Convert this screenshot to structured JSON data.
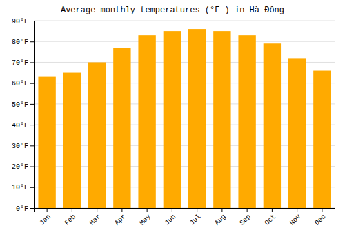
{
  "chart_data": {
    "type": "bar",
    "title": "Average monthly temperatures (°F ) in Hà Đông",
    "categories": [
      "Jan",
      "Feb",
      "Mar",
      "Apr",
      "May",
      "Jun",
      "Jul",
      "Aug",
      "Sep",
      "Oct",
      "Nov",
      "Dec"
    ],
    "values": [
      63,
      65,
      70,
      77,
      83,
      85,
      86,
      85,
      83,
      79,
      72,
      66
    ],
    "color": "#ffaa00",
    "ylim": [
      0,
      90
    ],
    "yticks": [
      {
        "value": 0,
        "label": "0°F"
      },
      {
        "value": 10,
        "label": "10°F"
      },
      {
        "value": 20,
        "label": "20°F"
      },
      {
        "value": 30,
        "label": "30°F"
      },
      {
        "value": 40,
        "label": "40°F"
      },
      {
        "value": 50,
        "label": "50°F"
      },
      {
        "value": 60,
        "label": "60°F"
      },
      {
        "value": 70,
        "label": "70°F"
      },
      {
        "value": 80,
        "label": "80°F"
      },
      {
        "value": 90,
        "label": "90°F"
      }
    ],
    "grid": true
  }
}
